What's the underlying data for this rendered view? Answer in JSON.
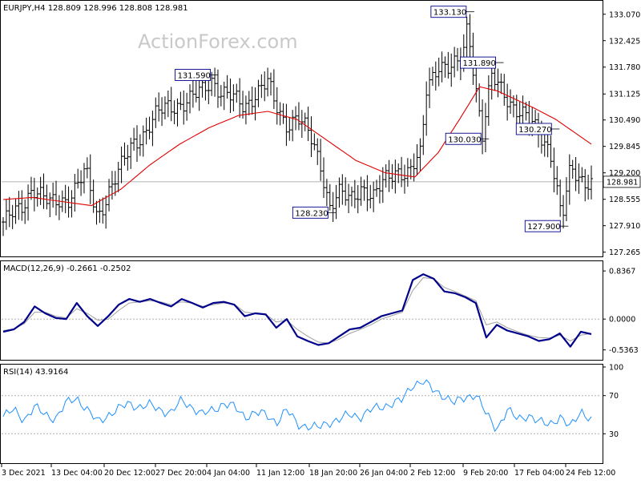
{
  "symbol_header": "EURJPY,H4  128.809 128.996 128.808 128.981",
  "watermark": "ActionForex.com",
  "colors": {
    "candles": "#000000",
    "ma": "#e00000",
    "macd_main": "#00008b",
    "macd_signal": "#a0a0a0",
    "rsi": "#1e90ff",
    "grid": "#b0b0b0"
  },
  "chart_data": [
    {
      "type": "bar",
      "name": "price",
      "x_labels": [
        "3 Dec 2021",
        "13 Dec 04:00",
        "20 Dec 12:00",
        "27 Dec 20:00",
        "4 Jan 04:00",
        "11 Jan 12:00",
        "18 Jan 20:00",
        "26 Jan 04:00",
        "2 Feb 12:00",
        "9 Feb 20:00",
        "17 Feb 04:00",
        "24 Feb 12:00"
      ],
      "y_ticks": [
        "133.070",
        "132.425",
        "131.780",
        "131.125",
        "130.490",
        "129.845",
        "129.200",
        "128.555",
        "127.910",
        "127.265"
      ],
      "ylim": [
        127.2,
        133.3
      ],
      "last_price": "128.981",
      "annotations": [
        {
          "text": "131.590",
          "at": 0.355,
          "value": 131.59
        },
        {
          "text": "128.230",
          "at": 0.555,
          "value": 128.23
        },
        {
          "text": "133.130",
          "at": 0.79,
          "value": 133.13
        },
        {
          "text": "131.890",
          "at": 0.84,
          "value": 131.89
        },
        {
          "text": "130.030",
          "at": 0.815,
          "value": 130.03
        },
        {
          "text": "130.270",
          "at": 0.935,
          "value": 130.27
        },
        {
          "text": "127.900",
          "at": 0.95,
          "value": 127.9
        }
      ],
      "close_path": [
        [
          0,
          128.0
        ],
        [
          0.03,
          128.3
        ],
        [
          0.05,
          128.9
        ],
        [
          0.08,
          128.4
        ],
        [
          0.11,
          128.6
        ],
        [
          0.14,
          129.2
        ],
        [
          0.16,
          128.1
        ],
        [
          0.18,
          128.8
        ],
        [
          0.2,
          129.3
        ],
        [
          0.22,
          129.9
        ],
        [
          0.24,
          130.2
        ],
        [
          0.26,
          130.6
        ],
        [
          0.28,
          130.8
        ],
        [
          0.3,
          130.9
        ],
        [
          0.32,
          131.0
        ],
        [
          0.34,
          131.2
        ],
        [
          0.355,
          131.5
        ],
        [
          0.37,
          131.2
        ],
        [
          0.39,
          131.0
        ],
        [
          0.41,
          130.8
        ],
        [
          0.43,
          131.2
        ],
        [
          0.45,
          131.4
        ],
        [
          0.46,
          130.9
        ],
        [
          0.48,
          130.4
        ],
        [
          0.5,
          130.6
        ],
        [
          0.52,
          130.1
        ],
        [
          0.54,
          129.4
        ],
        [
          0.555,
          128.4
        ],
        [
          0.57,
          128.7
        ],
        [
          0.59,
          128.5
        ],
        [
          0.61,
          128.9
        ],
        [
          0.63,
          128.6
        ],
        [
          0.65,
          129.0
        ],
        [
          0.67,
          129.3
        ],
        [
          0.69,
          129.2
        ],
        [
          0.71,
          129.6
        ],
        [
          0.72,
          131.3
        ],
        [
          0.74,
          131.9
        ],
        [
          0.76,
          131.7
        ],
        [
          0.78,
          131.9
        ],
        [
          0.79,
          132.9
        ],
        [
          0.8,
          131.7
        ],
        [
          0.815,
          130.1
        ],
        [
          0.83,
          131.5
        ],
        [
          0.85,
          131.2
        ],
        [
          0.87,
          130.8
        ],
        [
          0.89,
          130.5
        ],
        [
          0.91,
          130.2
        ],
        [
          0.93,
          129.8
        ],
        [
          0.95,
          128.0
        ],
        [
          0.965,
          129.3
        ],
        [
          0.98,
          129.1
        ],
        [
          1.0,
          128.98
        ]
      ],
      "ma_path": [
        [
          0,
          128.55
        ],
        [
          0.05,
          128.6
        ],
        [
          0.1,
          128.5
        ],
        [
          0.15,
          128.4
        ],
        [
          0.2,
          128.8
        ],
        [
          0.25,
          129.4
        ],
        [
          0.3,
          129.9
        ],
        [
          0.35,
          130.3
        ],
        [
          0.4,
          130.6
        ],
        [
          0.45,
          130.7
        ],
        [
          0.5,
          130.5
        ],
        [
          0.55,
          130.0
        ],
        [
          0.6,
          129.5
        ],
        [
          0.65,
          129.2
        ],
        [
          0.7,
          129.1
        ],
        [
          0.74,
          129.7
        ],
        [
          0.78,
          130.6
        ],
        [
          0.81,
          131.3
        ],
        [
          0.84,
          131.2
        ],
        [
          0.87,
          131.0
        ],
        [
          0.9,
          130.8
        ],
        [
          0.94,
          130.5
        ],
        [
          0.97,
          130.2
        ],
        [
          1.0,
          129.9
        ]
      ]
    },
    {
      "type": "line",
      "name": "MACD",
      "title": "MACD(12,26,9) -0.2661 -0.2502",
      "y_ticks": [
        "0.8367",
        "0.00",
        "-0.5363"
      ],
      "zero_label": "0.0000",
      "ylim": [
        -0.68,
        0.95
      ],
      "series": [
        {
          "name": "",
          "values": [
            -0.22,
            -0.18,
            -0.05,
            0.22,
            0.1,
            0.02,
            0.0,
            0.28,
            0.05,
            -0.12,
            0.05,
            0.25,
            0.35,
            0.3,
            0.35,
            0.28,
            0.22,
            0.35,
            0.28,
            0.2,
            0.28,
            0.3,
            0.25,
            0.05,
            0.1,
            0.08,
            -0.15,
            0.0,
            -0.3,
            -0.38,
            -0.45,
            -0.42,
            -0.3,
            -0.18,
            -0.15,
            -0.05,
            0.05,
            0.1,
            0.15,
            0.68,
            0.78,
            0.7,
            0.48,
            0.45,
            0.38,
            0.28,
            -0.32,
            -0.1,
            -0.2,
            -0.25,
            -0.3,
            -0.38,
            -0.35,
            -0.25,
            -0.48,
            -0.22,
            -0.26
          ]
        },
        {
          "name": "",
          "values": [
            -0.2,
            -0.17,
            -0.08,
            0.12,
            0.12,
            0.05,
            0.02,
            0.18,
            0.1,
            -0.02,
            0.0,
            0.15,
            0.28,
            0.3,
            0.32,
            0.3,
            0.25,
            0.3,
            0.28,
            0.22,
            0.25,
            0.28,
            0.26,
            0.12,
            0.1,
            0.08,
            -0.05,
            -0.02,
            -0.18,
            -0.3,
            -0.4,
            -0.42,
            -0.35,
            -0.25,
            -0.18,
            -0.1,
            0.0,
            0.06,
            0.12,
            0.5,
            0.72,
            0.7,
            0.55,
            0.48,
            0.4,
            0.32,
            -0.1,
            -0.05,
            -0.15,
            -0.22,
            -0.28,
            -0.32,
            -0.33,
            -0.28,
            -0.38,
            -0.28,
            -0.25
          ]
        }
      ]
    },
    {
      "type": "line",
      "name": "RSI",
      "title": "RSI(14) 43.9164",
      "y_ticks": [
        "100",
        "70",
        "30"
      ],
      "ylim": [
        0,
        100
      ],
      "series": [
        {
          "name": "",
          "values": [
            48,
            55,
            45,
            58,
            50,
            46,
            62,
            68,
            55,
            42,
            50,
            56,
            62,
            58,
            60,
            55,
            52,
            65,
            58,
            50,
            55,
            62,
            58,
            48,
            52,
            50,
            42,
            55,
            40,
            38,
            36,
            42,
            45,
            50,
            48,
            55,
            58,
            62,
            65,
            82,
            85,
            75,
            70,
            62,
            68,
            72,
            50,
            35,
            55,
            45,
            50,
            42,
            40,
            48,
            36,
            55,
            44
          ]
        }
      ]
    }
  ]
}
